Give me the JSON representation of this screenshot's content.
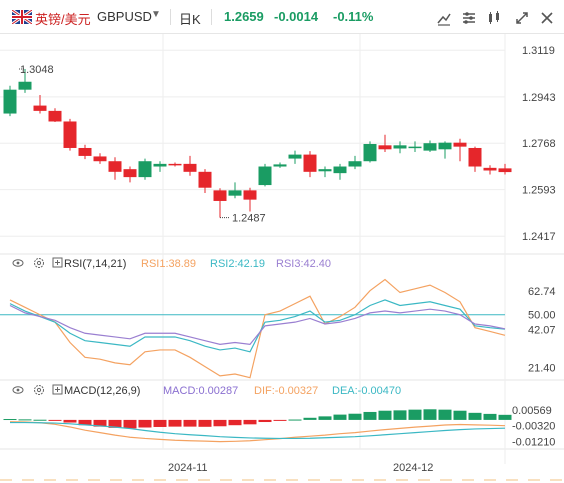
{
  "header": {
    "symbol_name": "英镑/美元",
    "symbol_code": "GBPUSD",
    "timeframe": "日K",
    "last_price": "1.2659",
    "change": "-0.0014",
    "change_pct": "-0.11%"
  },
  "colors": {
    "up": "#1a9c63",
    "down": "#e5262b",
    "rsi1": "#f4a261",
    "rsi2": "#3bb8c4",
    "rsi3": "#9a7fd1",
    "dif": "#f4a261",
    "dea": "#3bb8c4",
    "macd": "#8a6fd0",
    "grid": "#eeeeee",
    "ref": "#3bb8c4"
  },
  "icons": [
    "line-tool-icon",
    "indicator-icon",
    "compare-icon",
    "expand-icon",
    "close-icon",
    "eye-icon",
    "settings-icon"
  ],
  "chart_data": {
    "type": "candlestick",
    "dates": [
      "2024-10-24",
      "2024-10-25",
      "2024-10-28",
      "2024-10-29",
      "2024-10-30",
      "2024-10-31",
      "2024-11-01",
      "2024-11-04",
      "2024-11-05",
      "2024-11-06",
      "2024-11-07",
      "2024-11-08",
      "2024-11-11",
      "2024-11-12",
      "2024-11-13",
      "2024-11-14",
      "2024-11-15",
      "2024-11-18",
      "2024-11-19",
      "2024-11-20",
      "2024-11-21",
      "2024-11-22",
      "2024-11-25",
      "2024-11-26",
      "2024-11-27",
      "2024-11-28",
      "2024-11-29",
      "2024-12-02",
      "2024-12-03",
      "2024-12-04",
      "2024-12-05",
      "2024-12-06",
      "2024-12-09",
      "2024-12-10"
    ],
    "ohlc": [
      [
        1.288,
        1.2985,
        1.287,
        1.297
      ],
      [
        1.297,
        1.3048,
        1.2958,
        1.3
      ],
      [
        1.291,
        1.295,
        1.288,
        1.289
      ],
      [
        1.289,
        1.29,
        1.2848,
        1.285
      ],
      [
        1.285,
        1.286,
        1.274,
        1.275
      ],
      [
        1.275,
        1.2762,
        1.2708,
        1.272
      ],
      [
        1.2718,
        1.273,
        1.269,
        1.27
      ],
      [
        1.27,
        1.2715,
        1.263,
        1.266
      ],
      [
        1.267,
        1.268,
        1.262,
        1.264
      ],
      [
        1.264,
        1.271,
        1.263,
        1.27
      ],
      [
        1.268,
        1.27,
        1.266,
        1.269
      ],
      [
        1.269,
        1.2695,
        1.268,
        1.2688
      ],
      [
        1.269,
        1.272,
        1.2645,
        1.266
      ],
      [
        1.266,
        1.267,
        1.258,
        1.26
      ],
      [
        1.259,
        1.2598,
        1.2487,
        1.255
      ],
      [
        1.257,
        1.262,
        1.256,
        1.259
      ],
      [
        1.259,
        1.26,
        1.251,
        1.2555
      ],
      [
        1.261,
        1.269,
        1.2605,
        1.268
      ],
      [
        1.268,
        1.2695,
        1.2675,
        1.2688
      ],
      [
        1.271,
        1.274,
        1.269,
        1.2725
      ],
      [
        1.2725,
        1.2738,
        1.264,
        1.266
      ],
      [
        1.2662,
        1.268,
        1.264,
        1.267
      ],
      [
        1.2655,
        1.269,
        1.263,
        1.268
      ],
      [
        1.268,
        1.272,
        1.267,
        1.27
      ],
      [
        1.27,
        1.2775,
        1.2695,
        1.2765
      ],
      [
        1.276,
        1.28,
        1.2735,
        1.2745
      ],
      [
        1.2748,
        1.2775,
        1.273,
        1.276
      ],
      [
        1.275,
        1.2775,
        1.2735,
        1.2755
      ],
      [
        1.274,
        1.2778,
        1.2735,
        1.2768
      ],
      [
        1.2745,
        1.2775,
        1.271,
        1.277
      ],
      [
        1.277,
        1.2785,
        1.27,
        1.2755
      ],
      [
        1.275,
        1.2755,
        1.266,
        1.268
      ],
      [
        1.2675,
        1.2685,
        1.265,
        1.2665
      ],
      [
        1.2673,
        1.269,
        1.265,
        1.2659
      ]
    ],
    "price_axis": {
      "ticks": [
        1.3119,
        1.2943,
        1.2768,
        1.2593,
        1.2417
      ],
      "range": [
        1.238,
        1.315
      ]
    },
    "annotations": [
      {
        "text": "1.3048",
        "kind": "high",
        "value": 1.3048
      },
      {
        "text": "1.2487",
        "kind": "low",
        "value": 1.2487
      }
    ],
    "x_labels": [
      {
        "text": "2024-11",
        "at": "2024-11-11"
      },
      {
        "text": "2024-12",
        "at": "2024-12-02"
      }
    ],
    "rsi": {
      "legend_title": "RSI(7,14,21)",
      "labels": [
        "RSI1:38.89",
        "RSI2:42.19",
        "RSI3:42.40"
      ],
      "ticks": [
        62.74,
        50.0,
        42.07,
        21.4
      ],
      "reference": 50.0,
      "range": [
        18,
        72
      ],
      "rsi1": [
        58,
        54,
        50,
        46,
        35,
        27,
        26,
        24,
        23,
        30,
        31,
        31,
        27,
        22,
        17,
        18,
        16,
        50,
        52,
        56,
        60,
        45,
        49,
        54,
        63,
        69,
        62,
        64,
        66,
        62,
        57,
        43,
        41,
        38.89
      ],
      "rsi2": [
        56,
        52,
        49,
        46,
        40,
        36,
        35,
        34,
        33,
        38,
        38,
        38,
        36,
        33,
        31,
        32,
        30,
        46,
        47,
        49,
        52,
        46,
        47,
        50,
        55,
        58,
        55,
        56,
        57,
        55,
        53,
        44,
        43,
        42.19
      ],
      "rsi3": [
        55,
        51,
        49,
        47,
        43,
        40,
        39,
        38,
        37,
        40,
        40,
        40,
        38,
        36,
        34,
        35,
        34,
        44,
        45,
        46,
        48,
        45,
        46,
        48,
        51,
        52,
        51,
        52,
        53,
        52,
        50,
        45,
        44,
        42.4
      ]
    },
    "macd": {
      "legend_title": "MACD(12,26,9)",
      "labels": [
        "MACD:0.00287",
        "DIF:-0.00327",
        "DEA:-0.00470"
      ],
      "ticks": [
        0.00569,
        -0.0032,
        -0.0121
      ],
      "range": [
        -0.0142,
        0.009
      ],
      "hist": [
        0.0005,
        0.0003,
        0.0001,
        -0.0004,
        -0.0015,
        -0.003,
        -0.0038,
        -0.0045,
        -0.0048,
        -0.0043,
        -0.004,
        -0.0038,
        -0.0038,
        -0.0039,
        -0.0036,
        -0.003,
        -0.0025,
        -0.0012,
        -0.0005,
        0.0002,
        0.0012,
        0.002,
        0.003,
        0.0035,
        0.0045,
        0.0052,
        0.0054,
        0.0058,
        0.006,
        0.0058,
        0.0052,
        0.004,
        0.0034,
        0.00287
      ],
      "dif": [
        -0.001,
        -0.0012,
        -0.0016,
        -0.0025,
        -0.004,
        -0.0058,
        -0.0072,
        -0.0086,
        -0.0098,
        -0.0105,
        -0.011,
        -0.0115,
        -0.0118,
        -0.012,
        -0.0123,
        -0.0121,
        -0.0118,
        -0.0112,
        -0.0106,
        -0.0098,
        -0.0092,
        -0.0086,
        -0.0078,
        -0.0072,
        -0.0063,
        -0.0055,
        -0.0048,
        -0.0041,
        -0.0035,
        -0.0029,
        -0.0026,
        -0.0028,
        -0.003,
        -0.00327
      ],
      "dea": [
        -0.0015,
        -0.0015,
        -0.0016,
        -0.0018,
        -0.0022,
        -0.0028,
        -0.0034,
        -0.0041,
        -0.0049,
        -0.006,
        -0.007,
        -0.0078,
        -0.0084,
        -0.0089,
        -0.0095,
        -0.0099,
        -0.0102,
        -0.0104,
        -0.0105,
        -0.0105,
        -0.0104,
        -0.0101,
        -0.0098,
        -0.0095,
        -0.009,
        -0.0084,
        -0.0078,
        -0.0072,
        -0.0066,
        -0.006,
        -0.0055,
        -0.0051,
        -0.0049,
        -0.0047
      ]
    }
  }
}
